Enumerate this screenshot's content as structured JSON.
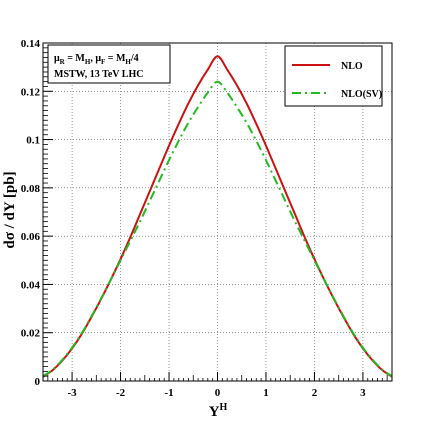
{
  "chart_data": {
    "type": "line",
    "title": "",
    "xlabel": "Y",
    "xlabel_sup": "H",
    "ylabel": "dσ / dY [pb]",
    "xlim": [
      -3.6,
      3.6
    ],
    "ylim": [
      0,
      0.14
    ],
    "grid": true,
    "legend_placement": "top-right",
    "x_ticks": [
      -3,
      -2,
      -1,
      0,
      1,
      2,
      3
    ],
    "x_tick_labels": [
      "-3",
      "-2",
      "-1",
      "0",
      "1",
      "2",
      "3"
    ],
    "y_ticks": [
      0,
      0.02,
      0.04,
      0.06,
      0.08,
      0.1,
      0.12,
      0.14
    ],
    "y_tick_labels": [
      "0",
      "0.02",
      "0.04",
      "0.06",
      "0.08",
      "0.1",
      "0.12",
      "0.14"
    ],
    "annotation": {
      "line1_parts": [
        "μ",
        "R",
        " = M",
        "H",
        ",  μ",
        "F",
        " = M",
        "H",
        "/4"
      ],
      "line2": "MSTW, 13 TeV LHC"
    },
    "x": [
      -3.6,
      -3.4,
      -3.2,
      -3.0,
      -2.8,
      -2.6,
      -2.4,
      -2.2,
      -2.0,
      -1.8,
      -1.6,
      -1.4,
      -1.2,
      -1.0,
      -0.8,
      -0.6,
      -0.4,
      -0.2,
      0.0,
      0.2,
      0.4,
      0.6,
      0.8,
      1.0,
      1.2,
      1.4,
      1.6,
      1.8,
      2.0,
      2.2,
      2.4,
      2.6,
      2.8,
      3.0,
      3.2,
      3.4,
      3.6
    ],
    "series": [
      {
        "name": "NLO",
        "color": "#cc1111",
        "dash": "solid",
        "values": [
          0.0018,
          0.0045,
          0.0085,
          0.0135,
          0.0195,
          0.0265,
          0.034,
          0.042,
          0.0505,
          0.0595,
          0.069,
          0.0785,
          0.088,
          0.0975,
          0.1065,
          0.115,
          0.1225,
          0.129,
          0.1345,
          0.129,
          0.1225,
          0.115,
          0.1065,
          0.0975,
          0.088,
          0.0785,
          0.069,
          0.0595,
          0.0505,
          0.042,
          0.034,
          0.0265,
          0.0195,
          0.0135,
          0.0085,
          0.0045,
          0.0018
        ]
      },
      {
        "name": "NLO(SV)",
        "color": "#22bb22",
        "dash": "dashdot",
        "values": [
          0.002,
          0.0047,
          0.0088,
          0.0138,
          0.0198,
          0.0268,
          0.0342,
          0.042,
          0.05,
          0.058,
          0.066,
          0.0745,
          0.083,
          0.0915,
          0.0995,
          0.107,
          0.1135,
          0.1195,
          0.124,
          0.1195,
          0.1135,
          0.107,
          0.0995,
          0.0915,
          0.083,
          0.0745,
          0.066,
          0.058,
          0.05,
          0.042,
          0.0342,
          0.0268,
          0.0198,
          0.0138,
          0.0088,
          0.0047,
          0.002
        ]
      }
    ]
  }
}
